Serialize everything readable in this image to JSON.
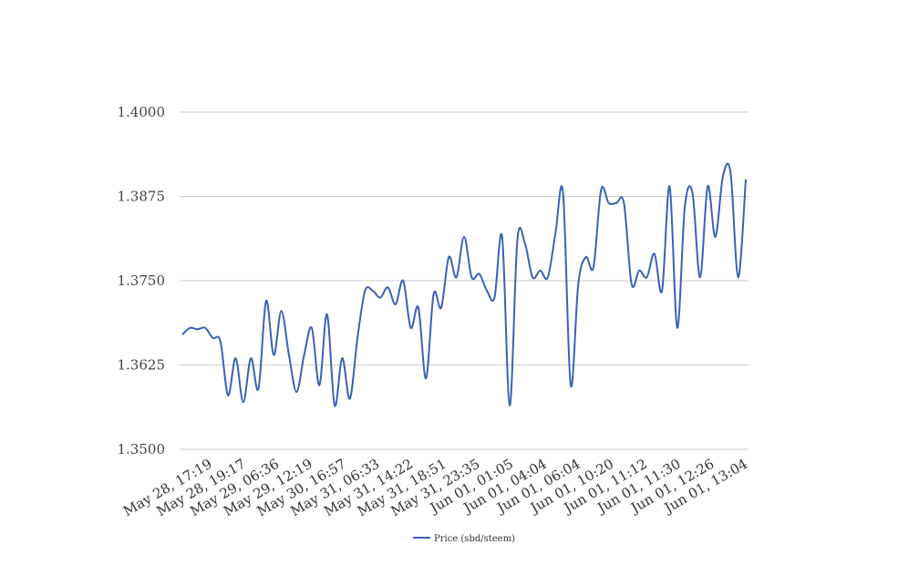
{
  "chart_data": {
    "type": "line",
    "title": "",
    "xlabel": "",
    "ylabel": "",
    "ylim": [
      1.35,
      1.4
    ],
    "yticks": [
      "1.3500",
      "1.3625",
      "1.3750",
      "1.3875",
      "1.4000"
    ],
    "grid": "horizontal",
    "legend_position": "bottom",
    "x_tick_labels": [
      "May 28, 17:19",
      "May 28, 19:17",
      "May 29, 06:36",
      "May 29, 12:19",
      "May 30, 16:57",
      "May 31, 06:33",
      "May 31, 14:22",
      "May 31, 18:51",
      "May 31, 23:35",
      "Jun 01, 01:05",
      "Jun 01, 04:04",
      "Jun 01, 06:04",
      "Jun 01, 10:20",
      "Jun 01, 11:12",
      "Jun 01, 11:30",
      "Jun 01, 12:26",
      "Jun 01, 13:04"
    ],
    "series": [
      {
        "name": "Price (sbd/steem)",
        "color": "#3a62b5",
        "values": [
          1.367,
          1.368,
          1.3678,
          1.368,
          1.3665,
          1.366,
          1.358,
          1.3635,
          1.357,
          1.3635,
          1.359,
          1.372,
          1.364,
          1.3705,
          1.364,
          1.3585,
          1.364,
          1.368,
          1.3595,
          1.37,
          1.3565,
          1.3635,
          1.3575,
          1.3665,
          1.3735,
          1.3735,
          1.3725,
          1.374,
          1.3715,
          1.375,
          1.368,
          1.371,
          1.3605,
          1.373,
          1.371,
          1.3785,
          1.3755,
          1.3815,
          1.3755,
          1.376,
          1.3735,
          1.3725,
          1.3815,
          1.3565,
          1.381,
          1.3805,
          1.3755,
          1.3765,
          1.3755,
          1.382,
          1.388,
          1.3595,
          1.3745,
          1.3785,
          1.377,
          1.3885,
          1.3865,
          1.3865,
          1.3865,
          1.3745,
          1.3765,
          1.3755,
          1.379,
          1.3735,
          1.389,
          1.368,
          1.386,
          1.388,
          1.3755,
          1.389,
          1.3815,
          1.3905,
          1.391,
          1.3755,
          1.39
        ]
      }
    ]
  }
}
